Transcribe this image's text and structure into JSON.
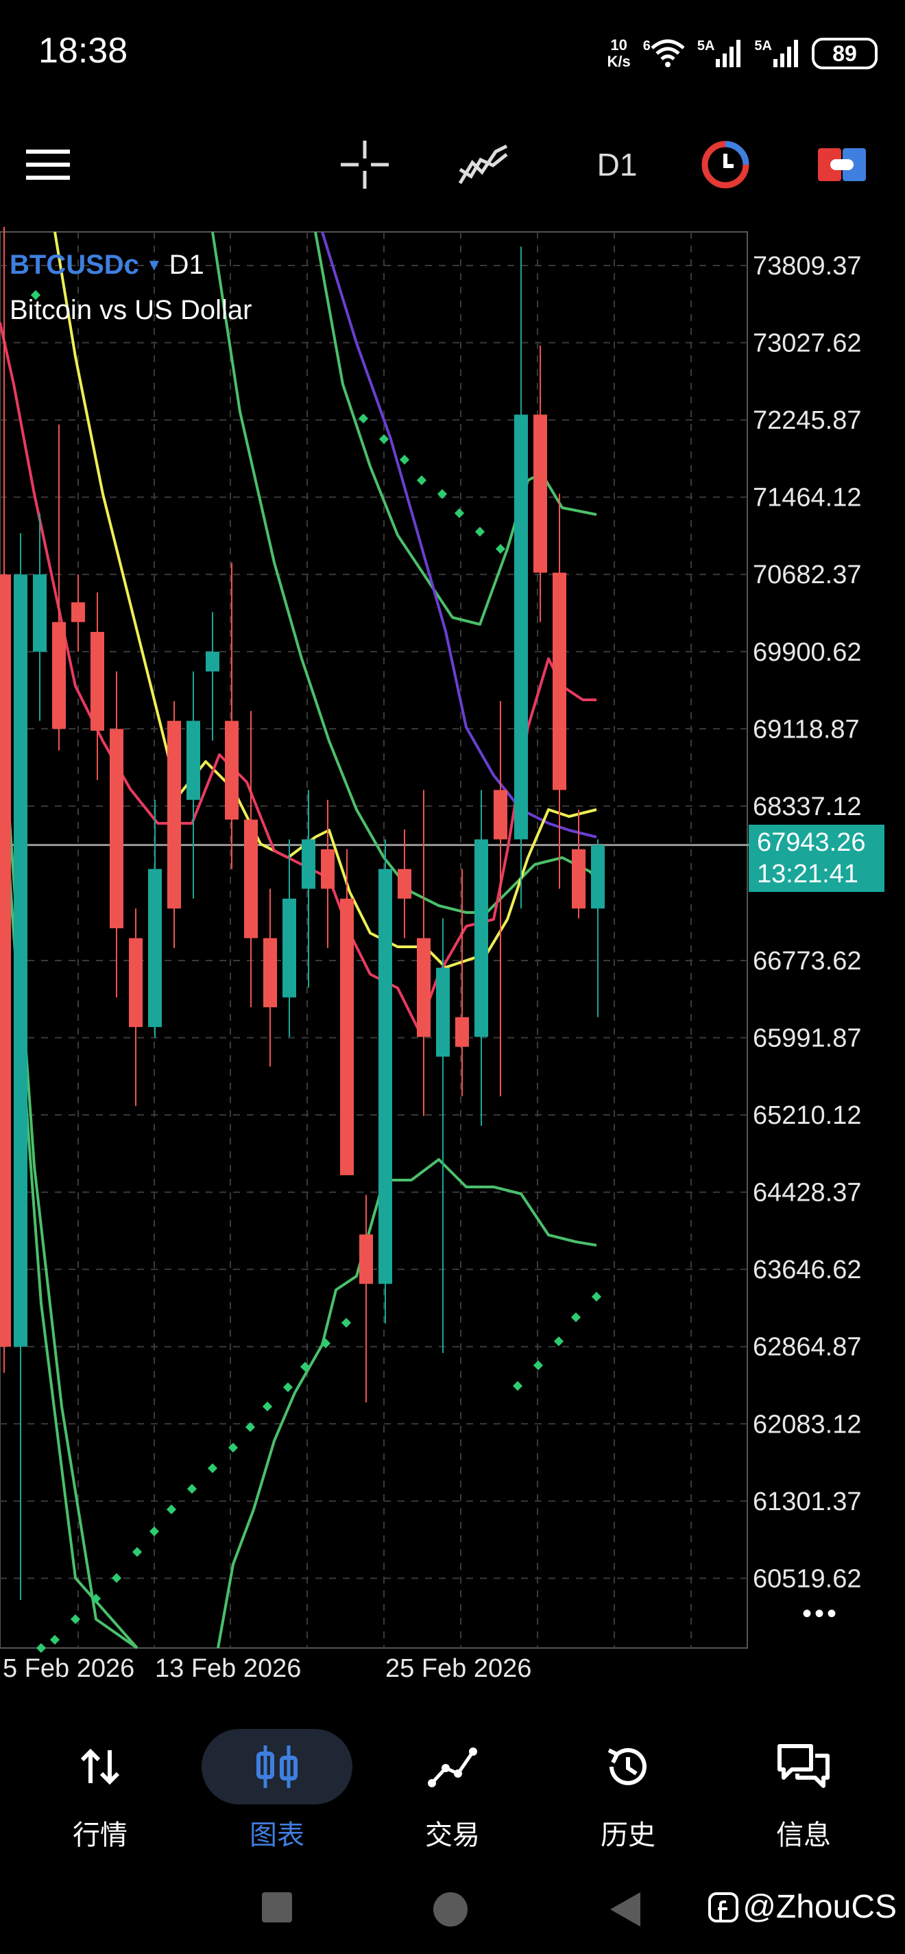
{
  "status_bar": {
    "time": "18:38",
    "net_speed_value": "10",
    "net_speed_unit": "K/s",
    "wifi_label": "6",
    "sim1_label": "5A",
    "sim2_label": "5A",
    "battery": "89"
  },
  "toolbar": {
    "timeframe": "D1"
  },
  "chart": {
    "symbol": "BTCUSDc",
    "timeframe": "D1",
    "description": "Bitcoin vs US Dollar",
    "current_price": "67943.26",
    "countdown": "13:21:41",
    "more_label": "•••",
    "price_axis": [
      "73809.37",
      "73027.62",
      "72245.87",
      "71464.12",
      "70682.37",
      "69900.62",
      "69118.87",
      "68337.12",
      "66773.62",
      "65991.87",
      "65210.12",
      "64428.37",
      "63646.62",
      "62864.87",
      "62083.12",
      "61301.37",
      "60519.62"
    ],
    "date_axis": [
      "5 Feb 2026",
      "13 Feb 2026",
      "25 Feb 2026"
    ],
    "colors": {
      "bull": "#1aa79a",
      "bear": "#ef5350",
      "ma_yellow": "#eeee55",
      "ma_red": "#e83a5f",
      "band_green": "#4bbf6b",
      "ma_purple": "#6a3fd0",
      "sar": "#2ecc71"
    }
  },
  "bottom_nav": [
    {
      "id": "quotes",
      "label": "行情",
      "icon": "up-down-arrows-icon"
    },
    {
      "id": "chart",
      "label": "图表",
      "icon": "candlestick-icon",
      "active": true
    },
    {
      "id": "trade",
      "label": "交易",
      "icon": "trend-line-icon"
    },
    {
      "id": "history",
      "label": "历史",
      "icon": "history-clock-icon"
    },
    {
      "id": "messages",
      "label": "信息",
      "icon": "chat-bubbles-icon"
    }
  ],
  "watermark": "@ZhouCS"
}
